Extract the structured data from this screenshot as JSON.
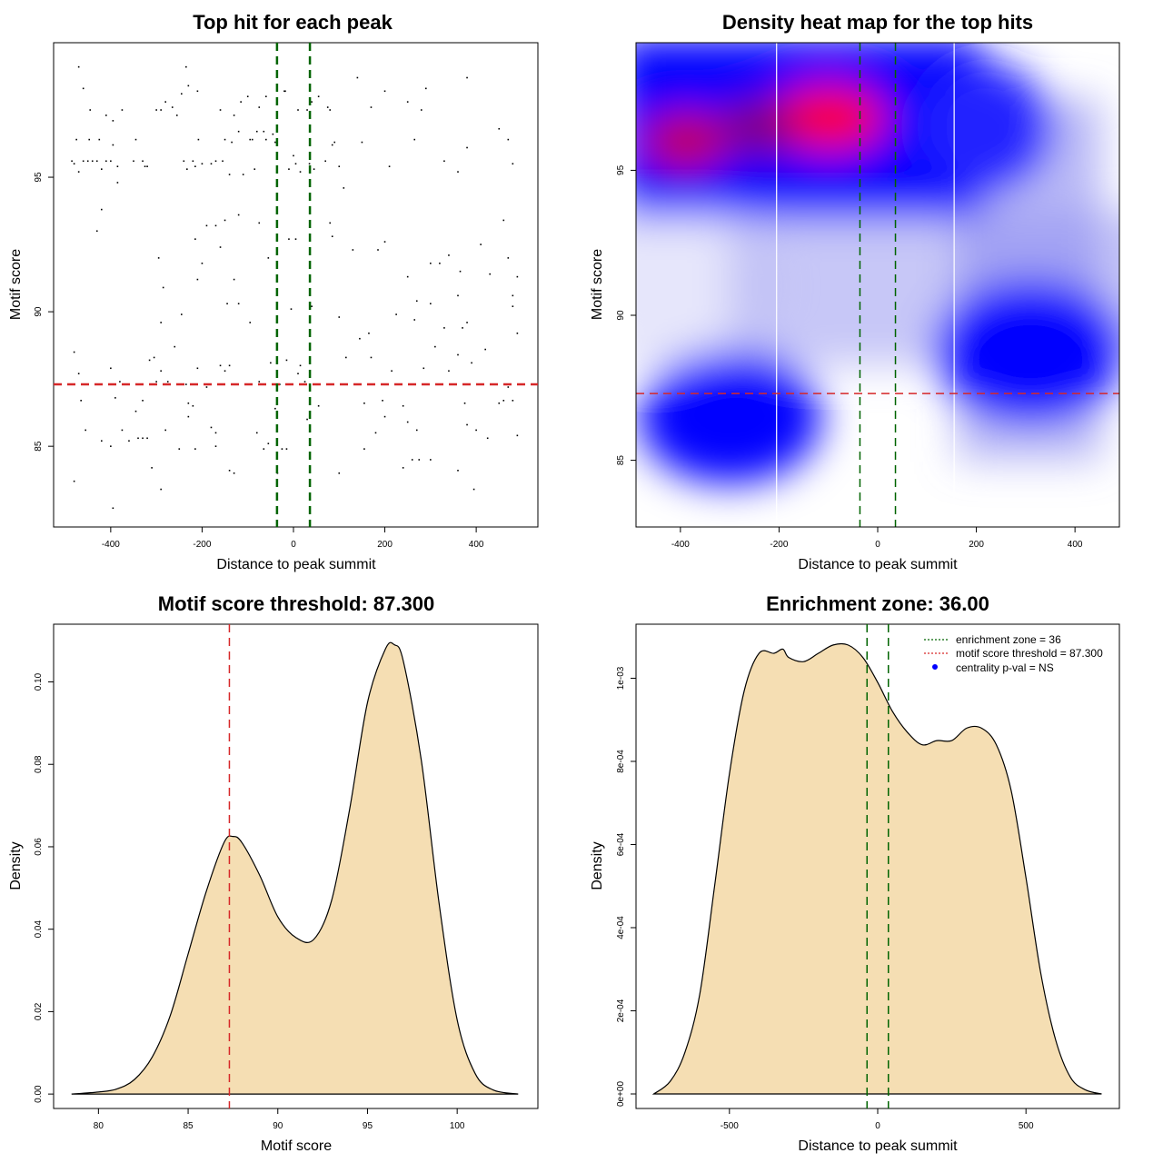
{
  "chart_data": [
    {
      "id": "scatter",
      "type": "scatter",
      "title": "Top hit for each peak",
      "xlabel": "Distance to peak summit",
      "ylabel": "Motif score",
      "xlim": [
        -525,
        535
      ],
      "ylim": [
        82.0,
        100.0
      ],
      "xticks": [
        -400,
        -200,
        0,
        200,
        400
      ],
      "yticks": [
        85,
        90,
        95
      ],
      "xtick_labels": [
        "-400",
        "-200",
        "0",
        "200",
        "400"
      ],
      "ytick_labels": [
        "85",
        "90",
        "95"
      ],
      "hlines": [
        {
          "y": 87.3,
          "color": "#d62728",
          "style": "dashed"
        }
      ],
      "vlines": [
        {
          "x": -36,
          "color": "#006400",
          "style": "dashed"
        },
        {
          "x": 36,
          "color": "#006400",
          "style": "dashed"
        }
      ],
      "points": [
        [
          -485,
          95.6
        ],
        [
          -480,
          95.5
        ],
        [
          -470,
          95.2
        ],
        [
          -475,
          96.4
        ],
        [
          -460,
          95.6
        ],
        [
          -450,
          95.6
        ],
        [
          -447,
          96.4
        ],
        [
          -440,
          95.6
        ],
        [
          -430,
          95.6
        ],
        [
          -425,
          96.4
        ],
        [
          -420,
          95.3
        ],
        [
          -410,
          95.6
        ],
        [
          -400,
          95.6
        ],
        [
          -395,
          96.2
        ],
        [
          -385,
          95.4
        ],
        [
          -375,
          97.5
        ],
        [
          -350,
          95.6
        ],
        [
          -345,
          96.4
        ],
        [
          -330,
          95.6
        ],
        [
          -325,
          95.4
        ],
        [
          -320,
          95.4
        ],
        [
          -300,
          97.5
        ],
        [
          -290,
          97.5
        ],
        [
          -280,
          97.8
        ],
        [
          -265,
          97.6
        ],
        [
          -255,
          97.3
        ],
        [
          -245,
          98.1
        ],
        [
          -240,
          95.6
        ],
        [
          -233,
          95.3
        ],
        [
          -230,
          98.4
        ],
        [
          -220,
          95.6
        ],
        [
          -215,
          95.4
        ],
        [
          -210,
          98.2
        ],
        [
          -208,
          96.4
        ],
        [
          -200,
          95.5
        ],
        [
          -180,
          95.5
        ],
        [
          -170,
          95.6
        ],
        [
          -160,
          97.5
        ],
        [
          -155,
          95.6
        ],
        [
          -150,
          96.4
        ],
        [
          -140,
          95.1
        ],
        [
          -135,
          96.3
        ],
        [
          -130,
          97.3
        ],
        [
          -120,
          96.7
        ],
        [
          -115,
          97.8
        ],
        [
          -110,
          95.1
        ],
        [
          -100,
          98.0
        ],
        [
          -95,
          96.4
        ],
        [
          -90,
          96.4
        ],
        [
          -85,
          95.3
        ],
        [
          -80,
          96.7
        ],
        [
          -75,
          97.6
        ],
        [
          -65,
          96.7
        ],
        [
          -60,
          98.0
        ],
        [
          -45,
          96.6
        ],
        [
          -40,
          96.3
        ],
        [
          -20,
          98.2
        ],
        [
          -18,
          98.2
        ],
        [
          -10,
          95.3
        ],
        [
          0,
          95.8
        ],
        [
          5,
          95.5
        ],
        [
          10,
          97.5
        ],
        [
          15,
          95.2
        ],
        [
          30,
          97.5
        ],
        [
          35,
          95.5
        ],
        [
          40,
          97.8
        ],
        [
          45,
          95.3
        ],
        [
          55,
          98.0
        ],
        [
          70,
          95.6
        ],
        [
          75,
          97.6
        ],
        [
          80,
          97.5
        ],
        [
          85,
          96.2
        ],
        [
          90,
          96.3
        ],
        [
          100,
          95.4
        ],
        [
          110,
          94.6
        ],
        [
          140,
          98.7
        ],
        [
          150,
          96.3
        ],
        [
          170,
          97.6
        ],
        [
          200,
          98.2
        ],
        [
          210,
          95.4
        ],
        [
          250,
          97.8
        ],
        [
          265,
          96.4
        ],
        [
          280,
          97.5
        ],
        [
          290,
          98.3
        ],
        [
          330,
          95.6
        ],
        [
          360,
          95.2
        ],
        [
          380,
          96.1
        ],
        [
          450,
          96.8
        ],
        [
          470,
          96.4
        ],
        [
          480,
          95.5
        ],
        [
          -460,
          98.3
        ],
        [
          -445,
          97.5
        ],
        [
          -430,
          93.0
        ],
        [
          -420,
          93.8
        ],
        [
          -410,
          97.3
        ],
        [
          -395,
          97.1
        ],
        [
          -385,
          94.8
        ],
        [
          -470,
          99.1
        ],
        [
          -235,
          99.1
        ],
        [
          380,
          98.7
        ],
        [
          -75,
          93.3
        ],
        [
          -55,
          92.0
        ],
        [
          -190,
          93.2
        ],
        [
          -215,
          92.7
        ],
        [
          -160,
          92.4
        ],
        [
          -145,
          90.3
        ],
        [
          -130,
          91.2
        ],
        [
          -60,
          96.4
        ],
        [
          -480,
          88.5
        ],
        [
          -470,
          87.7
        ],
        [
          -465,
          86.7
        ],
        [
          -455,
          85.6
        ],
        [
          -400,
          87.9
        ],
        [
          -390,
          86.8
        ],
        [
          -380,
          87.4
        ],
        [
          -345,
          86.3
        ],
        [
          -330,
          86.7
        ],
        [
          -320,
          85.3
        ],
        [
          -315,
          88.2
        ],
        [
          -300,
          87.4
        ],
        [
          -290,
          87.8
        ],
        [
          -275,
          87.4
        ],
        [
          -260,
          88.7
        ],
        [
          -235,
          87.3
        ],
        [
          -230,
          86.6
        ],
        [
          -220,
          86.5
        ],
        [
          -210,
          87.9
        ],
        [
          -190,
          87.2
        ],
        [
          -180,
          85.7
        ],
        [
          -170,
          85.5
        ],
        [
          -160,
          88.0
        ],
        [
          -150,
          87.8
        ],
        [
          -140,
          88.0
        ],
        [
          -130,
          84.0
        ],
        [
          -120,
          90.3
        ],
        [
          -95,
          89.6
        ],
        [
          -75,
          87.4
        ],
        [
          -65,
          84.9
        ],
        [
          -50,
          88.1
        ],
        [
          -40,
          86.4
        ],
        [
          -30,
          87.3
        ],
        [
          -25,
          84.9
        ],
        [
          -15,
          88.2
        ],
        [
          -10,
          92.7
        ],
        [
          -5,
          90.1
        ],
        [
          5,
          92.7
        ],
        [
          10,
          87.7
        ],
        [
          15,
          88.0
        ],
        [
          25,
          87.4
        ],
        [
          30,
          86.0
        ],
        [
          40,
          90.2
        ],
        [
          55,
          86.5
        ],
        [
          80,
          93.3
        ],
        [
          85,
          92.8
        ],
        [
          100,
          89.8
        ],
        [
          115,
          88.3
        ],
        [
          130,
          92.3
        ],
        [
          145,
          89.0
        ],
        [
          155,
          86.6
        ],
        [
          165,
          89.2
        ],
        [
          170,
          88.3
        ],
        [
          185,
          92.3
        ],
        [
          195,
          86.7
        ],
        [
          215,
          87.8
        ],
        [
          225,
          89.9
        ],
        [
          240,
          86.5
        ],
        [
          250,
          85.9
        ],
        [
          265,
          89.7
        ],
        [
          275,
          84.5
        ],
        [
          285,
          87.9
        ],
        [
          300,
          90.3
        ],
        [
          310,
          88.7
        ],
        [
          330,
          89.4
        ],
        [
          340,
          87.8
        ],
        [
          360,
          88.4
        ],
        [
          365,
          91.5
        ],
        [
          375,
          86.6
        ],
        [
          390,
          88.1
        ],
        [
          400,
          85.6
        ],
        [
          420,
          88.6
        ],
        [
          440,
          87.3
        ],
        [
          460,
          86.7
        ],
        [
          470,
          87.2
        ],
        [
          480,
          90.6
        ],
        [
          490,
          89.2
        ],
        [
          -305,
          88.3
        ],
        [
          -295,
          92.0
        ],
        [
          -290,
          89.6
        ],
        [
          -285,
          90.9
        ],
        [
          -245,
          89.9
        ],
        [
          -210,
          91.2
        ],
        [
          -200,
          91.8
        ],
        [
          -170,
          93.2
        ],
        [
          -150,
          93.4
        ],
        [
          -120,
          93.6
        ],
        [
          200,
          92.6
        ],
        [
          250,
          91.3
        ],
        [
          270,
          90.4
        ],
        [
          300,
          91.8
        ],
        [
          320,
          91.8
        ],
        [
          340,
          92.1
        ],
        [
          360,
          90.6
        ],
        [
          370,
          89.4
        ],
        [
          380,
          89.6
        ],
        [
          460,
          93.4
        ],
        [
          470,
          92.0
        ],
        [
          480,
          90.2
        ],
        [
          490,
          91.3
        ],
        [
          430,
          91.4
        ],
        [
          410,
          92.5
        ],
        [
          -480,
          83.7
        ],
        [
          -420,
          85.2
        ],
        [
          -400,
          85.0
        ],
        [
          -395,
          82.7
        ],
        [
          -375,
          85.6
        ],
        [
          -360,
          85.2
        ],
        [
          -340,
          85.3
        ],
        [
          -330,
          85.3
        ],
        [
          -310,
          84.2
        ],
        [
          -290,
          83.4
        ],
        [
          -280,
          85.6
        ],
        [
          -250,
          84.9
        ],
        [
          -230,
          86.1
        ],
        [
          -215,
          84.9
        ],
        [
          -170,
          85.0
        ],
        [
          -140,
          84.1
        ],
        [
          -80,
          85.5
        ],
        [
          -55,
          85.1
        ],
        [
          -35,
          84.0
        ],
        [
          -15,
          84.9
        ],
        [
          100,
          84.0
        ],
        [
          155,
          84.9
        ],
        [
          180,
          85.5
        ],
        [
          200,
          86.1
        ],
        [
          240,
          84.2
        ],
        [
          260,
          84.5
        ],
        [
          270,
          85.6
        ],
        [
          300,
          84.5
        ],
        [
          360,
          84.1
        ],
        [
          380,
          85.8
        ],
        [
          395,
          83.4
        ],
        [
          425,
          85.3
        ],
        [
          450,
          86.6
        ],
        [
          480,
          86.7
        ],
        [
          490,
          85.4
        ]
      ]
    },
    {
      "id": "heatmap",
      "type": "heatmap",
      "title": "Density heat map for the top hits",
      "xlabel": "Distance to peak summit",
      "ylabel": "Motif score",
      "xlim": [
        -490,
        490
      ],
      "ylim": [
        82.7,
        99.4
      ],
      "xticks": [
        -400,
        -200,
        0,
        200,
        400
      ],
      "yticks": [
        85,
        90,
        95
      ],
      "xtick_labels": [
        "-400",
        "-200",
        "0",
        "200",
        "400"
      ],
      "ytick_labels": [
        "85",
        "90",
        "95"
      ],
      "hlines": [
        {
          "y": 87.3,
          "color": "#d62728",
          "style": "dashed"
        }
      ],
      "vlines": [
        {
          "x": -36,
          "color": "#006400",
          "style": "dashed"
        },
        {
          "x": 36,
          "color": "#006400",
          "style": "dashed"
        }
      ],
      "white_grid_x": [
        -205,
        155
      ],
      "density_blobs": [
        {
          "x": -380,
          "y": 96.0,
          "weight": 0.85
        },
        {
          "x": -100,
          "y": 96.8,
          "weight": 1.0
        },
        {
          "x": 90,
          "y": 97.2,
          "weight": 0.55
        },
        {
          "x": -300,
          "y": 86.5,
          "weight": 0.55
        },
        {
          "x": 310,
          "y": 88.8,
          "weight": 0.6
        },
        {
          "x": 200,
          "y": 95.8,
          "weight": 0.35
        }
      ]
    },
    {
      "id": "score-density",
      "type": "area",
      "title": "Motif score threshold: 87.300",
      "xlabel": "Motif score",
      "ylabel": "Density",
      "xlim": [
        77.5,
        104.5
      ],
      "ylim": [
        -0.0035,
        0.114
      ],
      "xticks": [
        80,
        85,
        90,
        95,
        100
      ],
      "yticks": [
        0.0,
        0.02,
        0.04,
        0.06,
        0.08,
        0.1
      ],
      "xtick_labels": [
        "80",
        "85",
        "90",
        "95",
        "100"
      ],
      "ytick_labels": [
        "0.00",
        "0.02",
        "0.04",
        "0.06",
        "0.08",
        "0.10"
      ],
      "vlines": [
        {
          "x": 87.3,
          "color": "#d62728",
          "style": "dashed"
        }
      ],
      "fill": "#f5deb3",
      "x": [
        78.5,
        80,
        81,
        82,
        83,
        84,
        85,
        86,
        87,
        87.5,
        88,
        89,
        90,
        91,
        92,
        93,
        94,
        95,
        96,
        96.5,
        97,
        98,
        99,
        100,
        101,
        102,
        103.4
      ],
      "y": [
        0.0,
        0.0005,
        0.0012,
        0.0035,
        0.009,
        0.019,
        0.034,
        0.049,
        0.061,
        0.0625,
        0.061,
        0.053,
        0.043,
        0.038,
        0.0375,
        0.047,
        0.069,
        0.095,
        0.108,
        0.109,
        0.105,
        0.081,
        0.046,
        0.018,
        0.005,
        0.001,
        0.0
      ]
    },
    {
      "id": "distance-density",
      "type": "area",
      "title": "Enrichment zone: 36.00",
      "xlabel": "Distance to peak summit",
      "ylabel": "Density",
      "xlim": [
        -815,
        815
      ],
      "ylim": [
        -3.5e-05,
        0.00113
      ],
      "xticks": [
        -500,
        0,
        500
      ],
      "yticks": [
        0.0,
        0.0002,
        0.0004,
        0.0006,
        0.0008,
        0.001
      ],
      "xtick_labels": [
        "-500",
        "0",
        "500"
      ],
      "ytick_labels": [
        "0e+00",
        "2e-04",
        "4e-04",
        "6e-04",
        "8e-04",
        "1e-03"
      ],
      "vlines": [
        {
          "x": -36,
          "color": "#006400",
          "style": "dashed"
        },
        {
          "x": 36,
          "color": "#006400",
          "style": "dashed"
        }
      ],
      "fill": "#f5deb3",
      "x": [
        -755,
        -700,
        -650,
        -600,
        -550,
        -500,
        -450,
        -400,
        -350,
        -320,
        -300,
        -250,
        -200,
        -150,
        -100,
        -50,
        0,
        50,
        100,
        150,
        200,
        250,
        300,
        350,
        400,
        450,
        500,
        550,
        600,
        650,
        700,
        755
      ],
      "y": [
        0.0,
        3e-05,
        0.0001,
        0.00024,
        0.0005,
        0.00077,
        0.00097,
        0.00106,
        0.00106,
        0.00107,
        0.00105,
        0.00104,
        0.00106,
        0.00108,
        0.00108,
        0.00105,
        0.00099,
        0.00092,
        0.00087,
        0.00084,
        0.00085,
        0.00085,
        0.00088,
        0.00088,
        0.00084,
        0.00073,
        0.00052,
        0.00029,
        0.00013,
        4e-05,
        1e-05,
        0.0
      ]
    }
  ],
  "legend": {
    "items": [
      {
        "label": "enrichment zone = 36",
        "color": "#006400",
        "kind": "dotted-line"
      },
      {
        "label": "motif score threshold = 87.300",
        "color": "#d62728",
        "kind": "dotted-line"
      },
      {
        "label": "centrality p-val = NS",
        "color": "#0000ff",
        "kind": "dot"
      }
    ]
  }
}
